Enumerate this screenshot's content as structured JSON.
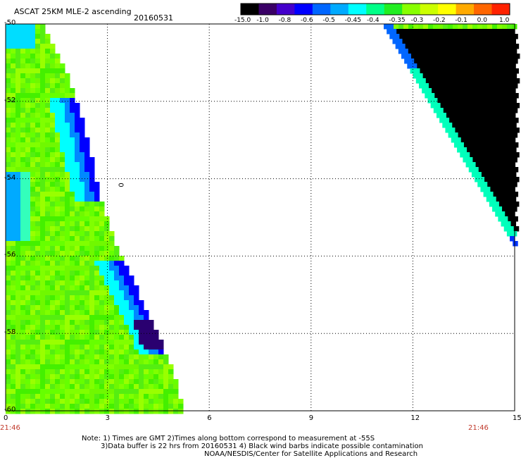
{
  "header": {
    "product": "ASCAT 25KM MLE-2 ascending",
    "date": "20160531"
  },
  "colorbar": {
    "labels": [
      "-15.0",
      "-1.0",
      "-0.8",
      "-0.6",
      "-0.5",
      "-0.45",
      "-0.4",
      "-0.35",
      "-0.3",
      "-0.2",
      "-0.1",
      "0.0",
      "1.0"
    ],
    "colors": [
      "#000000",
      "#3a0066",
      "#4400cc",
      "#0000ff",
      "#0066ff",
      "#00aaff",
      "#00ffff",
      "#00ff88",
      "#22ee22",
      "#88ff00",
      "#ccff00",
      "#ffff00",
      "#ffaa00",
      "#ff6600",
      "#ff2200"
    ]
  },
  "map": {
    "x_ticks": [
      "0",
      "3",
      "6",
      "9",
      "12",
      "15"
    ],
    "y_ticks": [
      "-50",
      "-52",
      "-54",
      "-56",
      "-58",
      "-60"
    ],
    "x_range": [
      0,
      15
    ],
    "y_range": [
      -50,
      -60
    ],
    "time_left": "21:46",
    "time_right": "21:46",
    "contour_label": "0"
  },
  "notes": {
    "line1": "Note: 1) Times are GMT 2)Times along bottom correspond to measurement at -55S",
    "line2": "3)Data buffer is 22 hrs from 20160531 4) Black wind barbs indicate possible contamination",
    "line3": "NOAA/NESDIS/Center for Satellite Applications and Research"
  }
}
